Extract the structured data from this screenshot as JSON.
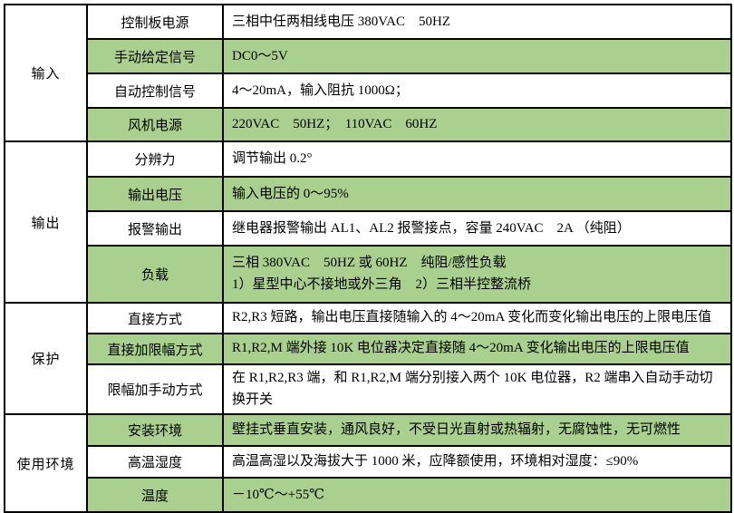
{
  "table": {
    "colors": {
      "row_green": "#a9d08e",
      "row_white": "#ffffff",
      "border": "#000000"
    },
    "sections": [
      {
        "category": "输入",
        "rows": [
          {
            "label": "控制板电源",
            "value": "三相中任两相线电压 380VAC　50HZ"
          },
          {
            "label": "手动给定信号",
            "value": "DC0～5V"
          },
          {
            "label": "自动控制信号",
            "value": "4～20mA，输入阻抗 1000Ω；"
          },
          {
            "label": "风机电源",
            "value": "220VAC　50HZ；　110VAC　60HZ"
          }
        ]
      },
      {
        "category": "输出",
        "rows": [
          {
            "label": "分辨力",
            "value": "调节输出 0.2°"
          },
          {
            "label": "输出电压",
            "value": "输入电压的 0～95%"
          },
          {
            "label": "报警输出",
            "value": "继电器报警输出 AL1、AL2 报警接点，容量 240VAC　2A （纯阻）"
          },
          {
            "label": "负载",
            "value": "三相 380VAC　50HZ 或 60HZ　纯阻/感性负载\n1）星型中心不接地或外三角　2）三相半控整流桥"
          }
        ]
      },
      {
        "category": "保护",
        "rows": [
          {
            "label": "直接方式",
            "value": "R2,R3 短路，输出电压直接随输入的 4～20mA 变化而变化输出电压的上限电压值"
          },
          {
            "label": "直接加限幅方式",
            "value": "R1,R2,M 端外接 10K 电位器决定直接随 4～20mA 变化输出电压的上限电压值"
          },
          {
            "label": "限幅加手动方式",
            "value": "在 R1,R2,R3 端，和 R1,R2,M 端分别接入两个 10K 电位器，R2 端串入自动手动切换开关"
          }
        ]
      },
      {
        "category": "使用环境",
        "rows": [
          {
            "label": "安装环境",
            "value": "壁挂式垂直安装，通风良好，不受日光直射或热辐射，无腐蚀性，无可燃性"
          },
          {
            "label": "高温湿度",
            "value": "高温高湿以及海拔大于 1000 米，应降额使用，环境相对湿度：≤90%"
          },
          {
            "label": "温度",
            "value": "－10℃～+55℃"
          }
        ]
      }
    ]
  }
}
